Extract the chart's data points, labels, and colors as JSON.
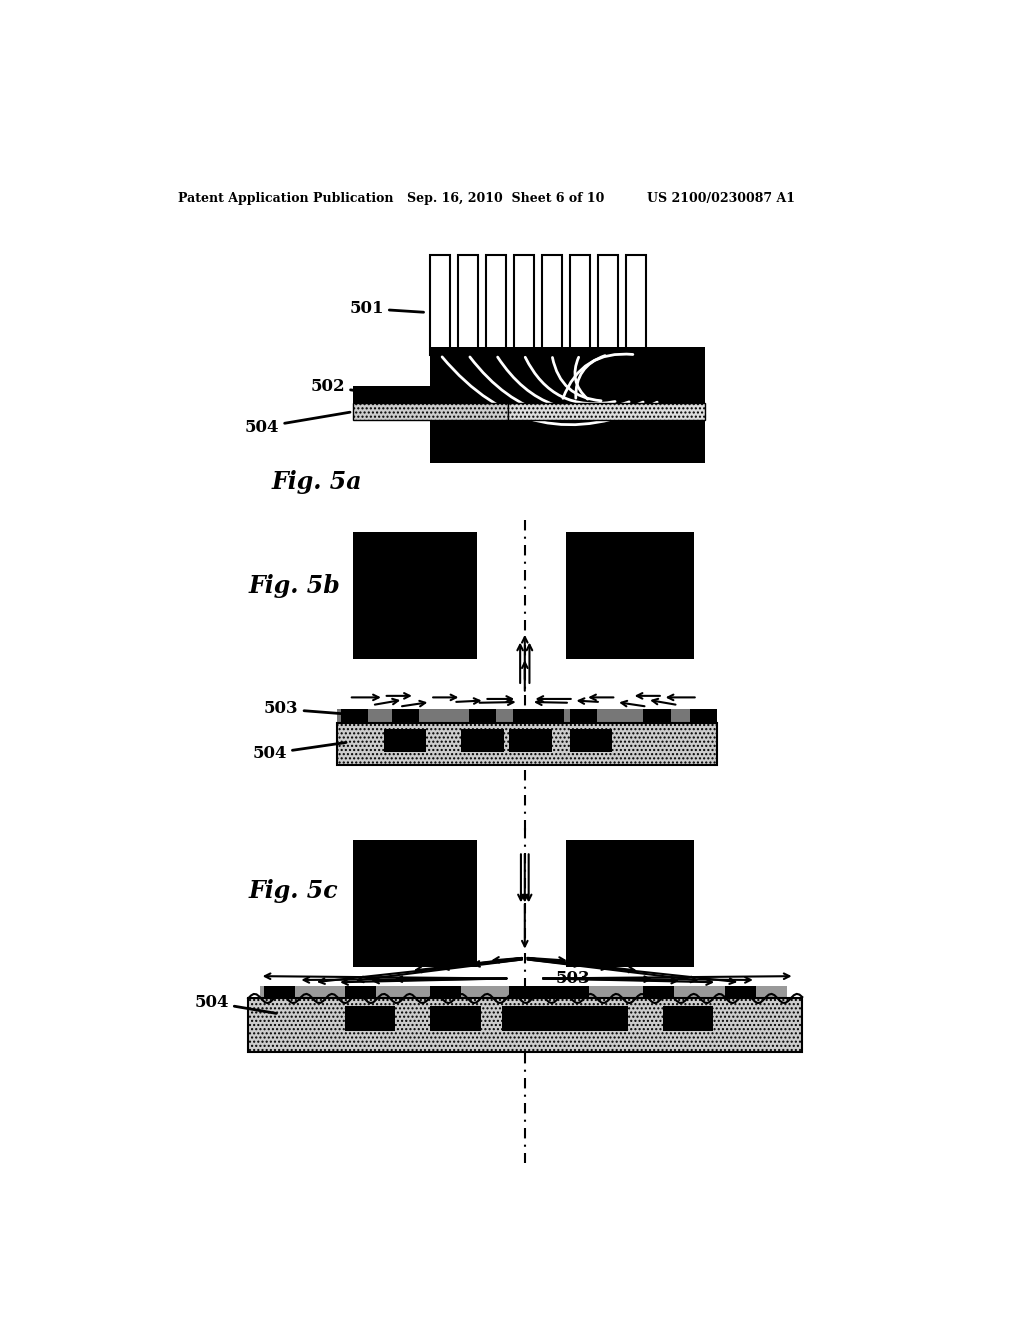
{
  "header_left": "Patent Application Publication",
  "header_mid": "Sep. 16, 2010  Sheet 6 of 10",
  "header_right": "US 2100/0230087 A1",
  "fig5a_label": "Fig. 5a",
  "fig5b_label": "Fig. 5b",
  "fig5c_label": "Fig. 5c",
  "label_501": "501",
  "label_502": "502",
  "label_503": "503",
  "label_504": "504",
  "bg_color": "#ffffff"
}
